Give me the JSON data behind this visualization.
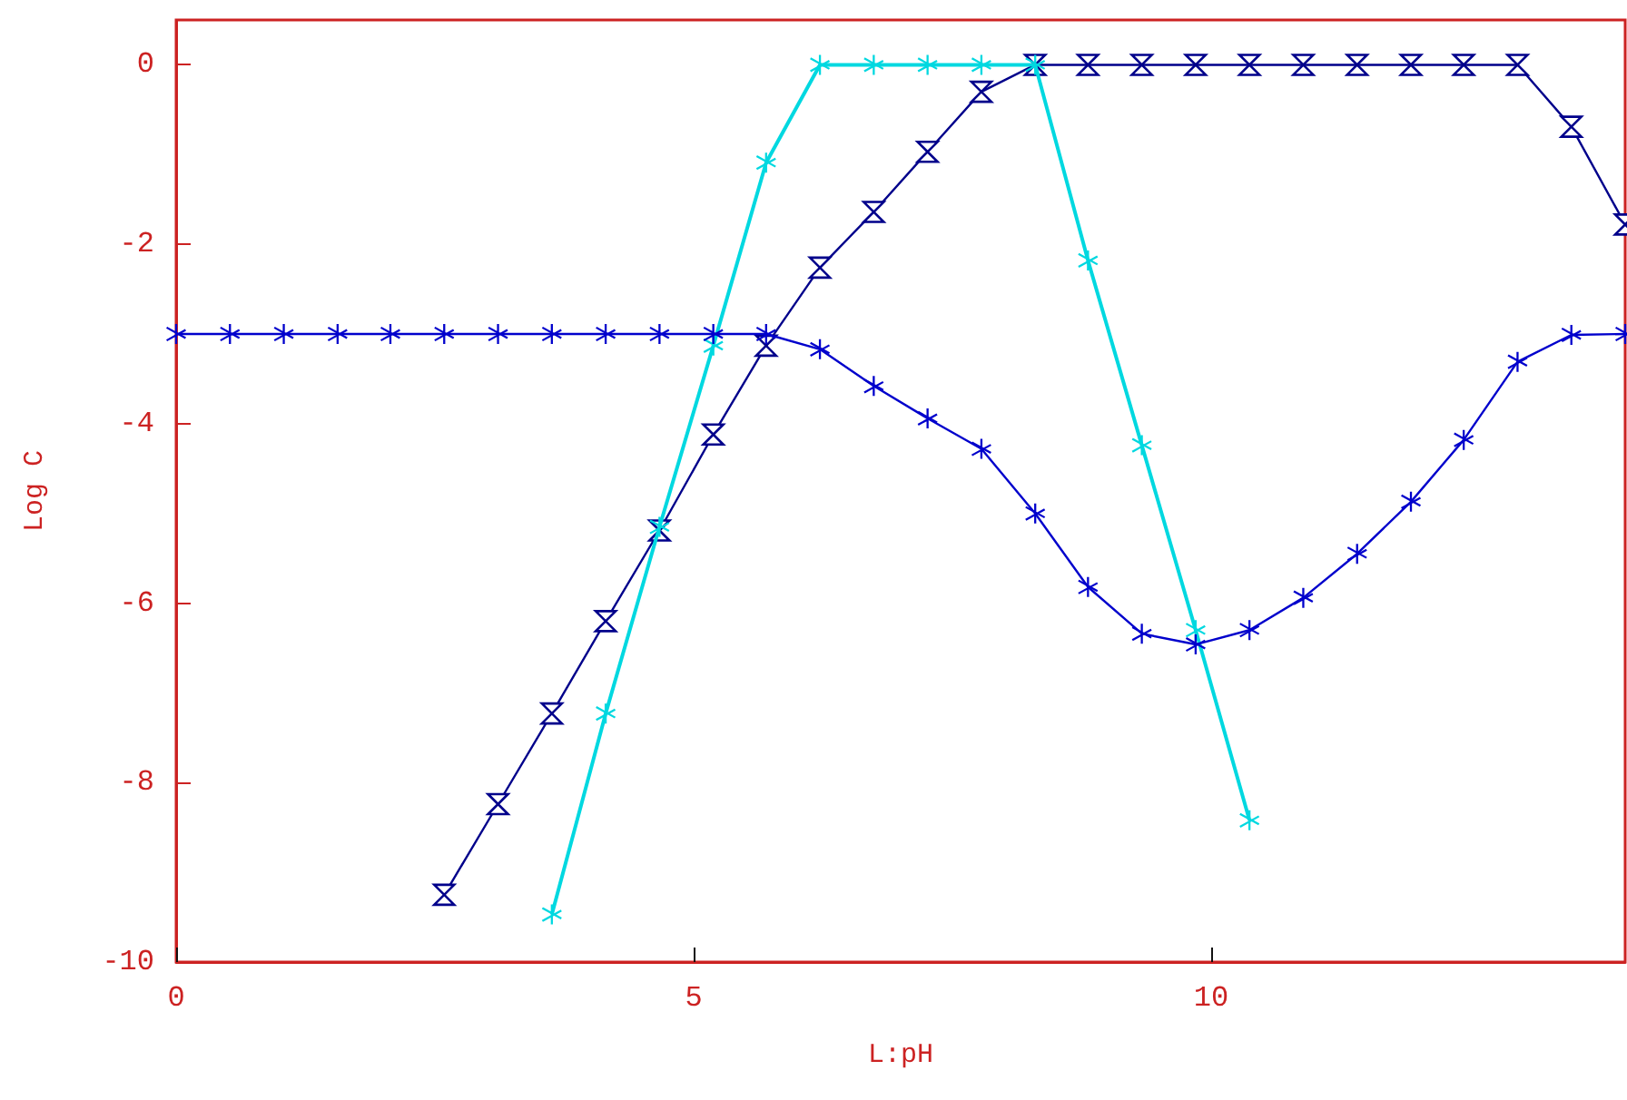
{
  "chart_data": {
    "type": "line",
    "xlabel": "L:pH",
    "ylabel": "Log C",
    "x": [
      0,
      0.52,
      1.04,
      1.56,
      2.07,
      2.59,
      3.11,
      3.63,
      4.15,
      4.67,
      5.19,
      5.7,
      6.22,
      6.74,
      7.26,
      7.78,
      8.3,
      8.81,
      9.33,
      9.85,
      10.37,
      10.89,
      11.41,
      11.93,
      12.44,
      12.96,
      13.48,
      14
    ],
    "series": [
      {
        "color": "#0000cc",
        "marker": "cross",
        "values": [
          -3,
          -3,
          -3,
          -3,
          -3,
          -3,
          -3,
          -3,
          -3,
          -3,
          -3,
          -3,
          -3.17,
          -3.58,
          -3.94,
          -4.28,
          -5.0,
          -5.82,
          -6.34,
          -6.46,
          -6.3,
          -5.94,
          -5.45,
          -4.87,
          -4.18,
          -3.31,
          -3.01,
          -3
        ]
      },
      {
        "color": "#00008b",
        "marker": "diamond",
        "values": [
          null,
          null,
          null,
          null,
          null,
          -9.25,
          -8.24,
          -7.23,
          -6.2,
          -5.19,
          -4.12,
          -3.13,
          -2.26,
          -1.64,
          -0.97,
          -0.3,
          0,
          0,
          0,
          0,
          0,
          0,
          0,
          0,
          0,
          0,
          -0.69,
          -1.78
        ]
      },
      {
        "color": "#00d8e0",
        "marker": "cross",
        "values": [
          null,
          null,
          null,
          null,
          null,
          null,
          null,
          -9.47,
          -7.23,
          -5.15,
          -3.13,
          -1.09,
          0,
          0,
          0,
          0,
          0,
          -2.18,
          -4.24,
          -6.3,
          -8.42,
          null,
          null,
          null,
          null,
          null,
          null,
          null
        ]
      }
    ],
    "xlim": [
      0,
      14
    ],
    "xticks": [
      0,
      5,
      10
    ],
    "ylim": [
      -10,
      0.5
    ],
    "yticks": [
      0,
      -2,
      -4,
      -6,
      -8,
      -10
    ],
    "grid": false
  }
}
